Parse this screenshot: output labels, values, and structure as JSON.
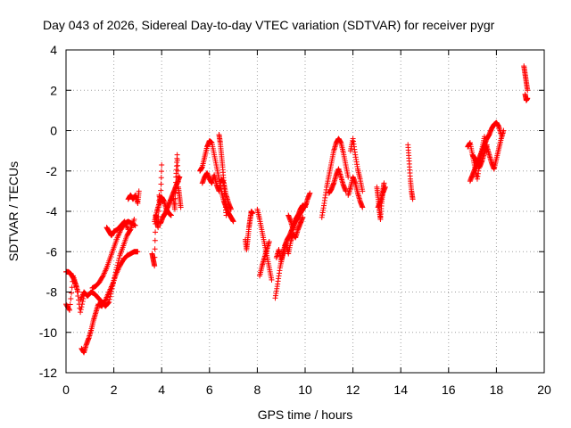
{
  "chart_data": {
    "type": "scatter",
    "title": "Day 043 of 2026, Sidereal Day-to-day VTEC variation (SDTVAR) for receiver pygr",
    "xlabel": "GPS time / hours",
    "ylabel": "SDTVAR / TECUs",
    "xlim": [
      0,
      20
    ],
    "ylim": [
      -12,
      4
    ],
    "xticks": [
      0,
      2,
      4,
      6,
      8,
      10,
      12,
      14,
      16,
      18,
      20
    ],
    "yticks": [
      -12,
      -10,
      -8,
      -6,
      -4,
      -2,
      0,
      2,
      4
    ],
    "grid": true,
    "marker": "+",
    "color": "#ff0000",
    "segments": [
      {
        "x": [
          0.0,
          0.15,
          0.3,
          0.45,
          0.6,
          0.75
        ],
        "y": [
          -8.6,
          -8.9,
          -7.2,
          -7.8,
          -9.0,
          -8.2
        ]
      },
      {
        "x": [
          0.0,
          0.1,
          0.2,
          0.3,
          0.4,
          0.5
        ],
        "y": [
          -7.0,
          -7.0,
          -7.1,
          -7.3,
          -7.6,
          -8.0
        ]
      },
      {
        "x": [
          0.65,
          0.75,
          0.85,
          0.95,
          1.05,
          1.15,
          1.25,
          1.35,
          1.5,
          1.65,
          1.8,
          1.95,
          2.1,
          2.25,
          2.4,
          2.55,
          2.7,
          2.85,
          3.0
        ],
        "y": [
          -10.8,
          -11.0,
          -10.6,
          -10.3,
          -9.9,
          -9.4,
          -9.0,
          -8.6,
          -8.7,
          -8.4,
          -8.0,
          -7.6,
          -7.1,
          -6.7,
          -6.4,
          -6.2,
          -6.1,
          -6.0,
          -6.0
        ]
      },
      {
        "x": [
          0.6,
          0.75,
          0.9,
          1.05,
          1.2,
          1.35,
          1.5,
          1.65,
          1.8,
          1.95,
          2.1,
          2.25,
          2.4,
          2.55,
          2.7,
          2.85
        ],
        "y": [
          -8.4,
          -8.0,
          -8.2,
          -8.0,
          -8.1,
          -8.3,
          -8.5,
          -8.7,
          -8.5,
          -7.7,
          -6.9,
          -6.2,
          -5.7,
          -5.2,
          -4.9,
          -4.4
        ]
      },
      {
        "x": [
          1.1,
          1.25,
          1.4,
          1.55,
          1.7,
          1.85,
          2.0,
          2.15,
          2.3,
          2.45,
          2.6,
          2.75,
          2.9
        ],
        "y": [
          -7.8,
          -7.7,
          -7.5,
          -7.2,
          -6.8,
          -6.3,
          -5.8,
          -5.3,
          -4.9,
          -4.6,
          -4.5,
          -4.6,
          -4.7
        ]
      },
      {
        "x": [
          1.7,
          1.8,
          1.9,
          2.0,
          2.15,
          2.3,
          2.45,
          2.6
        ],
        "y": [
          -4.8,
          -5.0,
          -5.2,
          -5.0,
          -4.9,
          -4.7,
          -4.5,
          -4.9
        ]
      },
      {
        "x": [
          2.6,
          2.7,
          2.8,
          2.9,
          3.0,
          3.05
        ],
        "y": [
          -3.4,
          -3.2,
          -3.4,
          -3.2,
          -3.6,
          -3.0
        ]
      },
      {
        "x": [
          3.6,
          3.65,
          3.7,
          3.75,
          3.8,
          3.85,
          3.9,
          3.95,
          4.0
        ],
        "y": [
          -6.1,
          -6.4,
          -6.7,
          -4.2,
          -4.5,
          -4.8,
          -3.2,
          -3.6,
          -1.7
        ]
      },
      {
        "x": [
          3.7,
          3.8,
          3.9,
          4.0,
          4.1,
          4.2,
          4.3,
          4.4
        ],
        "y": [
          -4.5,
          -4.0,
          -3.6,
          -3.3,
          -3.5,
          -3.9,
          -4.1,
          -4.2
        ]
      },
      {
        "x": [
          3.95,
          4.05,
          4.15,
          4.25,
          4.35,
          4.45,
          4.55,
          4.65,
          4.75
        ],
        "y": [
          -4.6,
          -4.3,
          -4.1,
          -3.8,
          -3.5,
          -3.2,
          -2.9,
          -2.6,
          -2.3
        ]
      },
      {
        "x": [
          4.5,
          4.55,
          4.6,
          4.65,
          4.7,
          4.75,
          4.8
        ],
        "y": [
          -3.4,
          -3.9,
          -2.3,
          -1.2,
          -2.8,
          -3.3,
          -3.8
        ]
      },
      {
        "x": [
          5.6,
          5.7,
          5.8,
          5.9,
          6.0,
          6.1,
          6.2,
          6.3,
          6.4,
          6.5,
          6.6,
          6.7,
          6.8,
          6.9,
          7.0
        ],
        "y": [
          -2.0,
          -1.8,
          -1.3,
          -0.8,
          -0.5,
          -0.6,
          -1.2,
          -1.8,
          -2.4,
          -3.0,
          -3.5,
          -3.8,
          -4.1,
          -4.3,
          -4.5
        ]
      },
      {
        "x": [
          5.7,
          5.8,
          5.9,
          6.0,
          6.1,
          6.2,
          6.3,
          6.4,
          6.5,
          6.6,
          6.7,
          6.8,
          6.9
        ],
        "y": [
          -2.6,
          -2.3,
          -2.1,
          -2.4,
          -2.6,
          -2.2,
          -2.7,
          -3.0,
          -2.4,
          -2.6,
          -3.2,
          -3.6,
          -3.9
        ]
      },
      {
        "x": [
          6.4,
          6.45,
          6.5,
          6.55,
          6.6,
          6.65,
          6.7
        ],
        "y": [
          -0.2,
          -0.6,
          -1.2,
          -1.8,
          -2.6,
          -3.4,
          -4.2
        ]
      },
      {
        "x": [
          7.5,
          7.55,
          7.6,
          7.65,
          7.7,
          7.75,
          7.8
        ],
        "y": [
          -5.4,
          -5.9,
          -5.4,
          -4.8,
          -4.4,
          -4.0,
          -4.1
        ]
      },
      {
        "x": [
          8.0,
          8.1,
          8.2,
          8.3,
          8.4,
          8.5,
          8.6
        ],
        "y": [
          -3.9,
          -4.4,
          -5.0,
          -5.6,
          -6.2,
          -6.8,
          -7.4
        ]
      },
      {
        "x": [
          8.1,
          8.2,
          8.3,
          8.4,
          8.5
        ],
        "y": [
          -7.2,
          -6.7,
          -6.3,
          -5.9,
          -5.5
        ]
      },
      {
        "x": [
          8.75,
          8.85,
          8.95,
          9.05,
          9.15,
          9.25,
          9.35,
          9.45,
          9.55,
          9.65,
          9.75,
          9.85,
          9.95,
          10.05
        ],
        "y": [
          -8.3,
          -7.6,
          -6.8,
          -6.2,
          -5.7,
          -5.4,
          -5.2,
          -4.9,
          -4.6,
          -4.4,
          -4.2,
          -4.0,
          -3.8,
          -3.6
        ]
      },
      {
        "x": [
          8.8,
          8.9,
          9.0,
          9.1,
          9.2,
          9.3,
          9.4,
          9.5,
          9.6,
          9.7,
          9.8,
          9.9
        ],
        "y": [
          -6.3,
          -5.9,
          -6.5,
          -6.0,
          -5.6,
          -6.1,
          -5.5,
          -5.1,
          -5.3,
          -4.9,
          -4.6,
          -4.3
        ]
      },
      {
        "x": [
          9.3,
          9.4,
          9.5,
          9.6,
          9.7,
          9.8,
          9.9,
          10.0,
          10.1,
          10.2
        ],
        "y": [
          -4.2,
          -4.5,
          -4.9,
          -4.4,
          -4.2,
          -3.9,
          -3.7,
          -3.8,
          -3.4,
          -3.1
        ]
      },
      {
        "x": [
          10.7,
          10.8,
          10.9,
          11.0,
          11.1,
          11.2,
          11.3,
          11.4,
          11.5,
          11.6,
          11.7,
          11.8
        ],
        "y": [
          -4.3,
          -3.6,
          -2.8,
          -2.2,
          -1.6,
          -1.0,
          -0.6,
          -0.4,
          -0.6,
          -1.1,
          -1.7,
          -2.3
        ]
      },
      {
        "x": [
          11.0,
          11.1,
          11.2,
          11.3,
          11.4,
          11.5,
          11.6,
          11.7
        ],
        "y": [
          -3.1,
          -2.9,
          -2.6,
          -2.2,
          -1.9,
          -2.3,
          -2.7,
          -3.0
        ]
      },
      {
        "x": [
          11.9,
          12.0,
          12.1,
          12.2,
          12.3,
          12.4
        ],
        "y": [
          -1.0,
          -0.4,
          -1.2,
          -1.9,
          -2.4,
          -3.0
        ]
      },
      {
        "x": [
          11.8,
          11.9,
          12.0,
          12.1,
          12.2,
          12.3,
          12.4
        ],
        "y": [
          -3.2,
          -2.8,
          -2.3,
          -2.6,
          -3.1,
          -3.5,
          -3.8
        ]
      },
      {
        "x": [
          13.0,
          13.05,
          13.1,
          13.15,
          13.2,
          13.25,
          13.3
        ],
        "y": [
          -2.8,
          -3.3,
          -3.9,
          -4.4,
          -3.6,
          -3.0,
          -2.6
        ]
      },
      {
        "x": [
          13.05,
          13.15,
          13.25,
          13.35
        ],
        "y": [
          -3.8,
          -3.5,
          -3.1,
          -2.8
        ]
      },
      {
        "x": [
          14.3,
          14.35,
          14.4,
          14.45,
          14.5
        ],
        "y": [
          -0.7,
          -1.5,
          -2.4,
          -3.0,
          -3.4
        ]
      },
      {
        "x": [
          16.8,
          16.9,
          17.0,
          17.1,
          17.2,
          17.3,
          17.4,
          17.5
        ],
        "y": [
          -0.8,
          -0.6,
          -1.2,
          -1.8,
          -2.4,
          -1.6,
          -0.9,
          -0.3
        ]
      },
      {
        "x": [
          16.9,
          17.0,
          17.1,
          17.2,
          17.3,
          17.4,
          17.5,
          17.6,
          17.7,
          17.8,
          17.9,
          18.0,
          18.1,
          18.2
        ],
        "y": [
          -2.5,
          -2.2,
          -1.9,
          -1.6,
          -1.3,
          -1.0,
          -0.7,
          -0.4,
          -0.2,
          0.1,
          0.3,
          0.4,
          0.2,
          -0.2
        ]
      },
      {
        "x": [
          17.6,
          17.7,
          17.8,
          17.9,
          18.0,
          18.1,
          18.2,
          18.3
        ],
        "y": [
          -0.8,
          -1.2,
          -1.6,
          -1.9,
          -1.4,
          -0.9,
          -0.4,
          0.0
        ]
      },
      {
        "x": [
          17.0,
          17.1,
          17.2,
          17.3,
          17.4,
          17.5,
          17.6
        ],
        "y": [
          -1.2,
          -1.4,
          -1.6,
          -1.8,
          -1.5,
          -1.1,
          -0.7
        ]
      },
      {
        "x": [
          19.15,
          19.2,
          19.25,
          19.3
        ],
        "y": [
          3.2,
          2.8,
          2.4,
          2.0
        ]
      },
      {
        "x": [
          19.2,
          19.25,
          19.3
        ],
        "y": [
          1.8,
          1.5,
          1.6
        ]
      }
    ]
  }
}
